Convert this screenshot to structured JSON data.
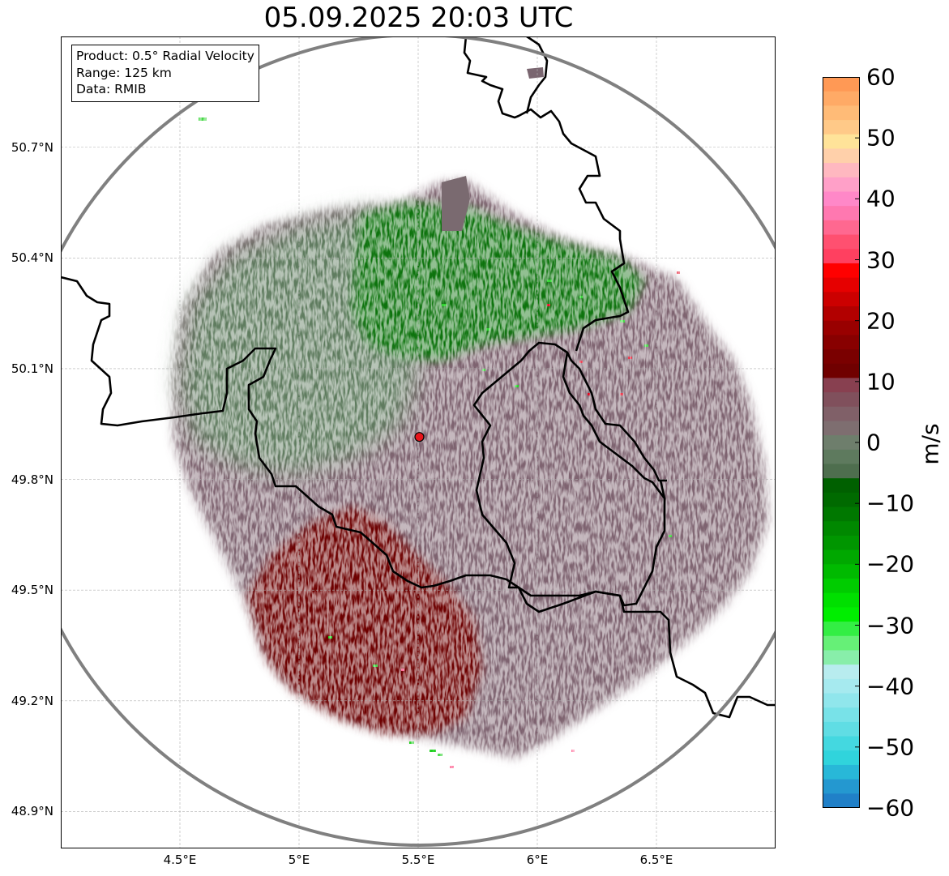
{
  "title": "05.09.2025 20:03 UTC",
  "info": {
    "product": "Product: 0.5° Radial Velocity",
    "range": "Range: 125 km",
    "source": "Data: RMIB"
  },
  "map": {
    "lon_range": [
      4.0,
      7.0
    ],
    "lat_range": [
      48.8,
      51.0
    ],
    "radar_site": {
      "lon": 5.505,
      "lat": 49.915
    },
    "range_km": 125,
    "lat_ticks": [
      {
        "value": 48.9,
        "label": "48.9°N"
      },
      {
        "value": 49.2,
        "label": "49.2°N"
      },
      {
        "value": 49.5,
        "label": "49.5°N"
      },
      {
        "value": 49.8,
        "label": "49.8°N"
      },
      {
        "value": 50.1,
        "label": "50.1°N"
      },
      {
        "value": 50.4,
        "label": "50.4°N"
      },
      {
        "value": 50.7,
        "label": "50.7°N"
      }
    ],
    "lon_ticks": [
      {
        "value": 4.5,
        "label": "4.5°E"
      },
      {
        "value": 5.0,
        "label": "5°E"
      },
      {
        "value": 5.5,
        "label": "5.5°E"
      },
      {
        "value": 6.0,
        "label": "6°E"
      },
      {
        "value": 6.5,
        "label": "6.5°E"
      }
    ],
    "grid": true,
    "colors": {
      "range_ring": "#808080",
      "borders": "#000000",
      "grid": "#b0b0b0",
      "radar_site_marker": "#e8141b",
      "echo_inbound_strong": "#0a6e0a",
      "echo_inbound_bright": "#1ecf1e",
      "echo_zero": "#5e7f5e",
      "echo_outbound_weak": "#7e5e6a",
      "echo_outbound_strong": "#6e0000"
    }
  },
  "colorbar": {
    "label": "m/s",
    "vmin": -60,
    "vmax": 60,
    "ticks": [
      "60",
      "50",
      "40",
      "30",
      "20",
      "10",
      "0",
      "−10",
      "−20",
      "−30",
      "−40",
      "−50",
      "−60"
    ],
    "colors_top_to_bottom": [
      "#ff9955",
      "#ffaa66",
      "#ffbb77",
      "#ffc988",
      "#ffe399",
      "#ffd0aa",
      "#ffb8c0",
      "#ffa0c8",
      "#ff88c8",
      "#ff78b0",
      "#ff6890",
      "#ff5070",
      "#ff4060",
      "#ff0000",
      "#e60000",
      "#cc0000",
      "#b20000",
      "#990000",
      "#880000",
      "#7a0000",
      "#700000",
      "#884050",
      "#80505c",
      "#806068",
      "#7e6e70",
      "#6e7e6c",
      "#5e7a5e",
      "#4e6e4e",
      "#006000",
      "#006a00",
      "#007800",
      "#008800",
      "#009600",
      "#00a800",
      "#00ba00",
      "#00cc00",
      "#00e000",
      "#00ee00",
      "#33ee44",
      "#66f077",
      "#88eeaa",
      "#b8ecef",
      "#a6eaef",
      "#90e6ec",
      "#78e2e8",
      "#60dde4",
      "#44d8e0",
      "#30d4dc",
      "#28b8d8",
      "#2498d0",
      "#2080c8"
    ]
  }
}
